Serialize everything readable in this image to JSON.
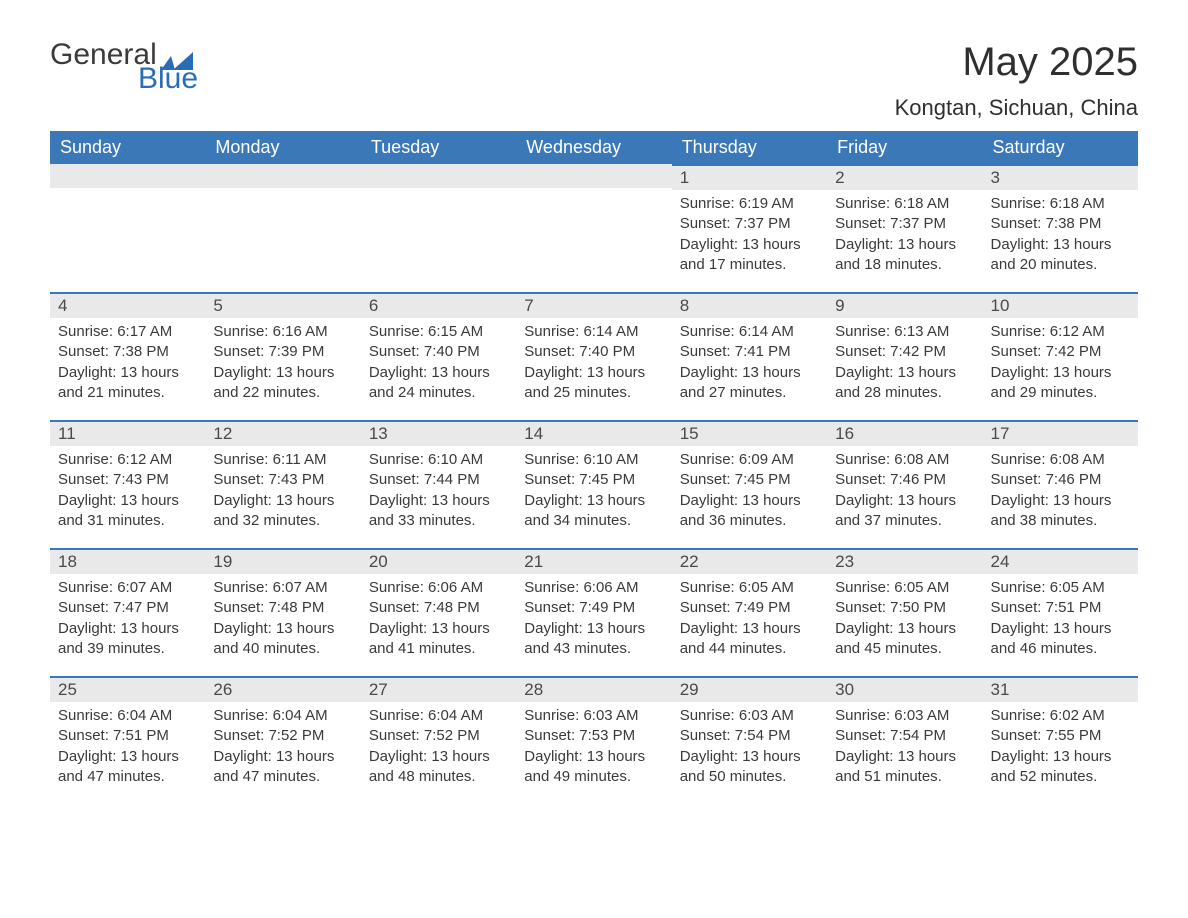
{
  "logo": {
    "text1": "General",
    "text2": "Blue"
  },
  "title": "May 2025",
  "location": "Kongtan, Sichuan, China",
  "colors": {
    "header_bg": "#3b78b8",
    "header_text": "#ffffff",
    "daynum_bg": "#e9e9e9",
    "daynum_border": "#3b78b8",
    "body_text": "#3a3a3a",
    "title_text": "#2f2f2f",
    "logo_gray": "#3b3b3b",
    "logo_blue": "#2a6db5",
    "page_bg": "#ffffff"
  },
  "typography": {
    "month_title_fontsize": 40,
    "location_fontsize": 22,
    "weekday_fontsize": 18,
    "daynum_fontsize": 17,
    "body_fontsize": 15
  },
  "weekdays": [
    "Sunday",
    "Monday",
    "Tuesday",
    "Wednesday",
    "Thursday",
    "Friday",
    "Saturday"
  ],
  "weeks": [
    [
      null,
      null,
      null,
      null,
      {
        "day": "1",
        "sunrise": "Sunrise: 6:19 AM",
        "sunset": "Sunset: 7:37 PM",
        "daylight": "Daylight: 13 hours and 17 minutes."
      },
      {
        "day": "2",
        "sunrise": "Sunrise: 6:18 AM",
        "sunset": "Sunset: 7:37 PM",
        "daylight": "Daylight: 13 hours and 18 minutes."
      },
      {
        "day": "3",
        "sunrise": "Sunrise: 6:18 AM",
        "sunset": "Sunset: 7:38 PM",
        "daylight": "Daylight: 13 hours and 20 minutes."
      }
    ],
    [
      {
        "day": "4",
        "sunrise": "Sunrise: 6:17 AM",
        "sunset": "Sunset: 7:38 PM",
        "daylight": "Daylight: 13 hours and 21 minutes."
      },
      {
        "day": "5",
        "sunrise": "Sunrise: 6:16 AM",
        "sunset": "Sunset: 7:39 PM",
        "daylight": "Daylight: 13 hours and 22 minutes."
      },
      {
        "day": "6",
        "sunrise": "Sunrise: 6:15 AM",
        "sunset": "Sunset: 7:40 PM",
        "daylight": "Daylight: 13 hours and 24 minutes."
      },
      {
        "day": "7",
        "sunrise": "Sunrise: 6:14 AM",
        "sunset": "Sunset: 7:40 PM",
        "daylight": "Daylight: 13 hours and 25 minutes."
      },
      {
        "day": "8",
        "sunrise": "Sunrise: 6:14 AM",
        "sunset": "Sunset: 7:41 PM",
        "daylight": "Daylight: 13 hours and 27 minutes."
      },
      {
        "day": "9",
        "sunrise": "Sunrise: 6:13 AM",
        "sunset": "Sunset: 7:42 PM",
        "daylight": "Daylight: 13 hours and 28 minutes."
      },
      {
        "day": "10",
        "sunrise": "Sunrise: 6:12 AM",
        "sunset": "Sunset: 7:42 PM",
        "daylight": "Daylight: 13 hours and 29 minutes."
      }
    ],
    [
      {
        "day": "11",
        "sunrise": "Sunrise: 6:12 AM",
        "sunset": "Sunset: 7:43 PM",
        "daylight": "Daylight: 13 hours and 31 minutes."
      },
      {
        "day": "12",
        "sunrise": "Sunrise: 6:11 AM",
        "sunset": "Sunset: 7:43 PM",
        "daylight": "Daylight: 13 hours and 32 minutes."
      },
      {
        "day": "13",
        "sunrise": "Sunrise: 6:10 AM",
        "sunset": "Sunset: 7:44 PM",
        "daylight": "Daylight: 13 hours and 33 minutes."
      },
      {
        "day": "14",
        "sunrise": "Sunrise: 6:10 AM",
        "sunset": "Sunset: 7:45 PM",
        "daylight": "Daylight: 13 hours and 34 minutes."
      },
      {
        "day": "15",
        "sunrise": "Sunrise: 6:09 AM",
        "sunset": "Sunset: 7:45 PM",
        "daylight": "Daylight: 13 hours and 36 minutes."
      },
      {
        "day": "16",
        "sunrise": "Sunrise: 6:08 AM",
        "sunset": "Sunset: 7:46 PM",
        "daylight": "Daylight: 13 hours and 37 minutes."
      },
      {
        "day": "17",
        "sunrise": "Sunrise: 6:08 AM",
        "sunset": "Sunset: 7:46 PM",
        "daylight": "Daylight: 13 hours and 38 minutes."
      }
    ],
    [
      {
        "day": "18",
        "sunrise": "Sunrise: 6:07 AM",
        "sunset": "Sunset: 7:47 PM",
        "daylight": "Daylight: 13 hours and 39 minutes."
      },
      {
        "day": "19",
        "sunrise": "Sunrise: 6:07 AM",
        "sunset": "Sunset: 7:48 PM",
        "daylight": "Daylight: 13 hours and 40 minutes."
      },
      {
        "day": "20",
        "sunrise": "Sunrise: 6:06 AM",
        "sunset": "Sunset: 7:48 PM",
        "daylight": "Daylight: 13 hours and 41 minutes."
      },
      {
        "day": "21",
        "sunrise": "Sunrise: 6:06 AM",
        "sunset": "Sunset: 7:49 PM",
        "daylight": "Daylight: 13 hours and 43 minutes."
      },
      {
        "day": "22",
        "sunrise": "Sunrise: 6:05 AM",
        "sunset": "Sunset: 7:49 PM",
        "daylight": "Daylight: 13 hours and 44 minutes."
      },
      {
        "day": "23",
        "sunrise": "Sunrise: 6:05 AM",
        "sunset": "Sunset: 7:50 PM",
        "daylight": "Daylight: 13 hours and 45 minutes."
      },
      {
        "day": "24",
        "sunrise": "Sunrise: 6:05 AM",
        "sunset": "Sunset: 7:51 PM",
        "daylight": "Daylight: 13 hours and 46 minutes."
      }
    ],
    [
      {
        "day": "25",
        "sunrise": "Sunrise: 6:04 AM",
        "sunset": "Sunset: 7:51 PM",
        "daylight": "Daylight: 13 hours and 47 minutes."
      },
      {
        "day": "26",
        "sunrise": "Sunrise: 6:04 AM",
        "sunset": "Sunset: 7:52 PM",
        "daylight": "Daylight: 13 hours and 47 minutes."
      },
      {
        "day": "27",
        "sunrise": "Sunrise: 6:04 AM",
        "sunset": "Sunset: 7:52 PM",
        "daylight": "Daylight: 13 hours and 48 minutes."
      },
      {
        "day": "28",
        "sunrise": "Sunrise: 6:03 AM",
        "sunset": "Sunset: 7:53 PM",
        "daylight": "Daylight: 13 hours and 49 minutes."
      },
      {
        "day": "29",
        "sunrise": "Sunrise: 6:03 AM",
        "sunset": "Sunset: 7:54 PM",
        "daylight": "Daylight: 13 hours and 50 minutes."
      },
      {
        "day": "30",
        "sunrise": "Sunrise: 6:03 AM",
        "sunset": "Sunset: 7:54 PM",
        "daylight": "Daylight: 13 hours and 51 minutes."
      },
      {
        "day": "31",
        "sunrise": "Sunrise: 6:02 AM",
        "sunset": "Sunset: 7:55 PM",
        "daylight": "Daylight: 13 hours and 52 minutes."
      }
    ]
  ]
}
